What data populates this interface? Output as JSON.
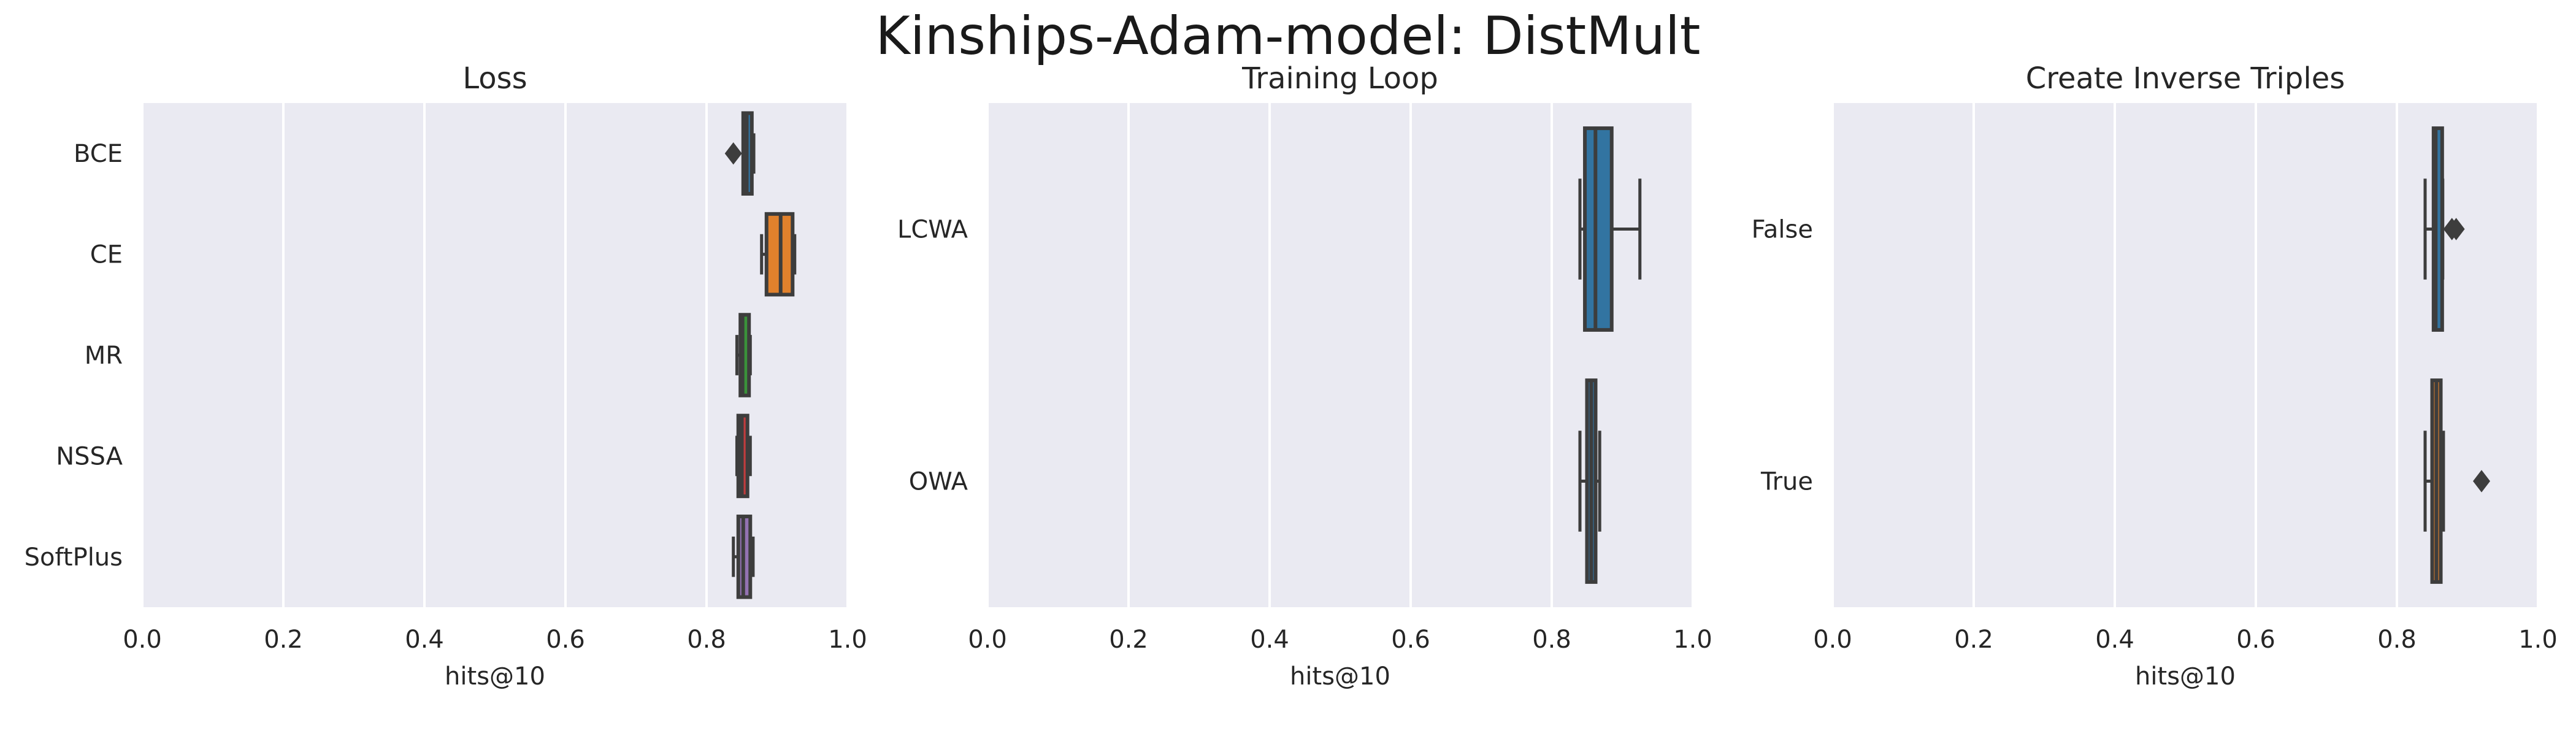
{
  "suptitle": "Kinships-Adam-model: DistMult",
  "colors": {
    "background": "#eaeaf2",
    "grid": "#ffffff",
    "box_edge": "#3d3d3d",
    "palette": [
      "#3274a1",
      "#e1812c",
      "#3a923a",
      "#c03d3e",
      "#9372b2"
    ]
  },
  "chart_data": [
    {
      "type": "box",
      "orientation": "horizontal",
      "title": "Loss",
      "xlabel": "hits@10",
      "xlim": [
        0,
        1
      ],
      "xticks": [
        "0.0",
        "0.2",
        "0.4",
        "0.6",
        "0.8",
        "1.0"
      ],
      "grid": true,
      "categories": [
        "BCE",
        "CE",
        "MR",
        "NSSA",
        "SoftPlus"
      ],
      "boxes": [
        {
          "min": 0.852,
          "q1": 0.852,
          "median": 0.857,
          "q3": 0.862,
          "max": 0.867,
          "outliers": [
            0.838
          ]
        },
        {
          "min": 0.878,
          "q1": 0.885,
          "median": 0.905,
          "q3": 0.922,
          "max": 0.925,
          "outliers": []
        },
        {
          "min": 0.843,
          "q1": 0.848,
          "median": 0.851,
          "q3": 0.856,
          "max": 0.862,
          "outliers": []
        },
        {
          "min": 0.843,
          "q1": 0.845,
          "median": 0.85,
          "q3": 0.858,
          "max": 0.862,
          "outliers": []
        },
        {
          "min": 0.838,
          "q1": 0.845,
          "median": 0.852,
          "q3": 0.862,
          "max": 0.866,
          "outliers": []
        }
      ]
    },
    {
      "type": "box",
      "orientation": "horizontal",
      "title": "Training Loop",
      "xlabel": "hits@10",
      "xlim": [
        0,
        1
      ],
      "xticks": [
        "0.0",
        "0.2",
        "0.4",
        "0.6",
        "0.8",
        "1.0"
      ],
      "grid": true,
      "categories": [
        "LCWA",
        "OWA"
      ],
      "boxes": [
        {
          "min": 0.84,
          "q1": 0.847,
          "median": 0.862,
          "q3": 0.885,
          "max": 0.925,
          "outliers": []
        },
        {
          "min": 0.84,
          "q1": 0.85,
          "median": 0.856,
          "q3": 0.86,
          "max": 0.868,
          "outliers": []
        }
      ]
    },
    {
      "type": "box",
      "orientation": "horizontal",
      "title": "Create Inverse Triples",
      "xlabel": "hits@10",
      "xlim": [
        0,
        1
      ],
      "xticks": [
        "0.0",
        "0.2",
        "0.4",
        "0.6",
        "0.8",
        "1.0"
      ],
      "grid": true,
      "categories": [
        "False",
        "True"
      ],
      "boxes": [
        {
          "min": 0.84,
          "q1": 0.852,
          "median": 0.855,
          "q3": 0.862,
          "max": 0.865,
          "outliers": [
            0.878,
            0.884
          ]
        },
        {
          "min": 0.84,
          "q1": 0.85,
          "median": 0.856,
          "q3": 0.862,
          "max": 0.866,
          "outliers": [
            0.92
          ]
        }
      ]
    }
  ]
}
